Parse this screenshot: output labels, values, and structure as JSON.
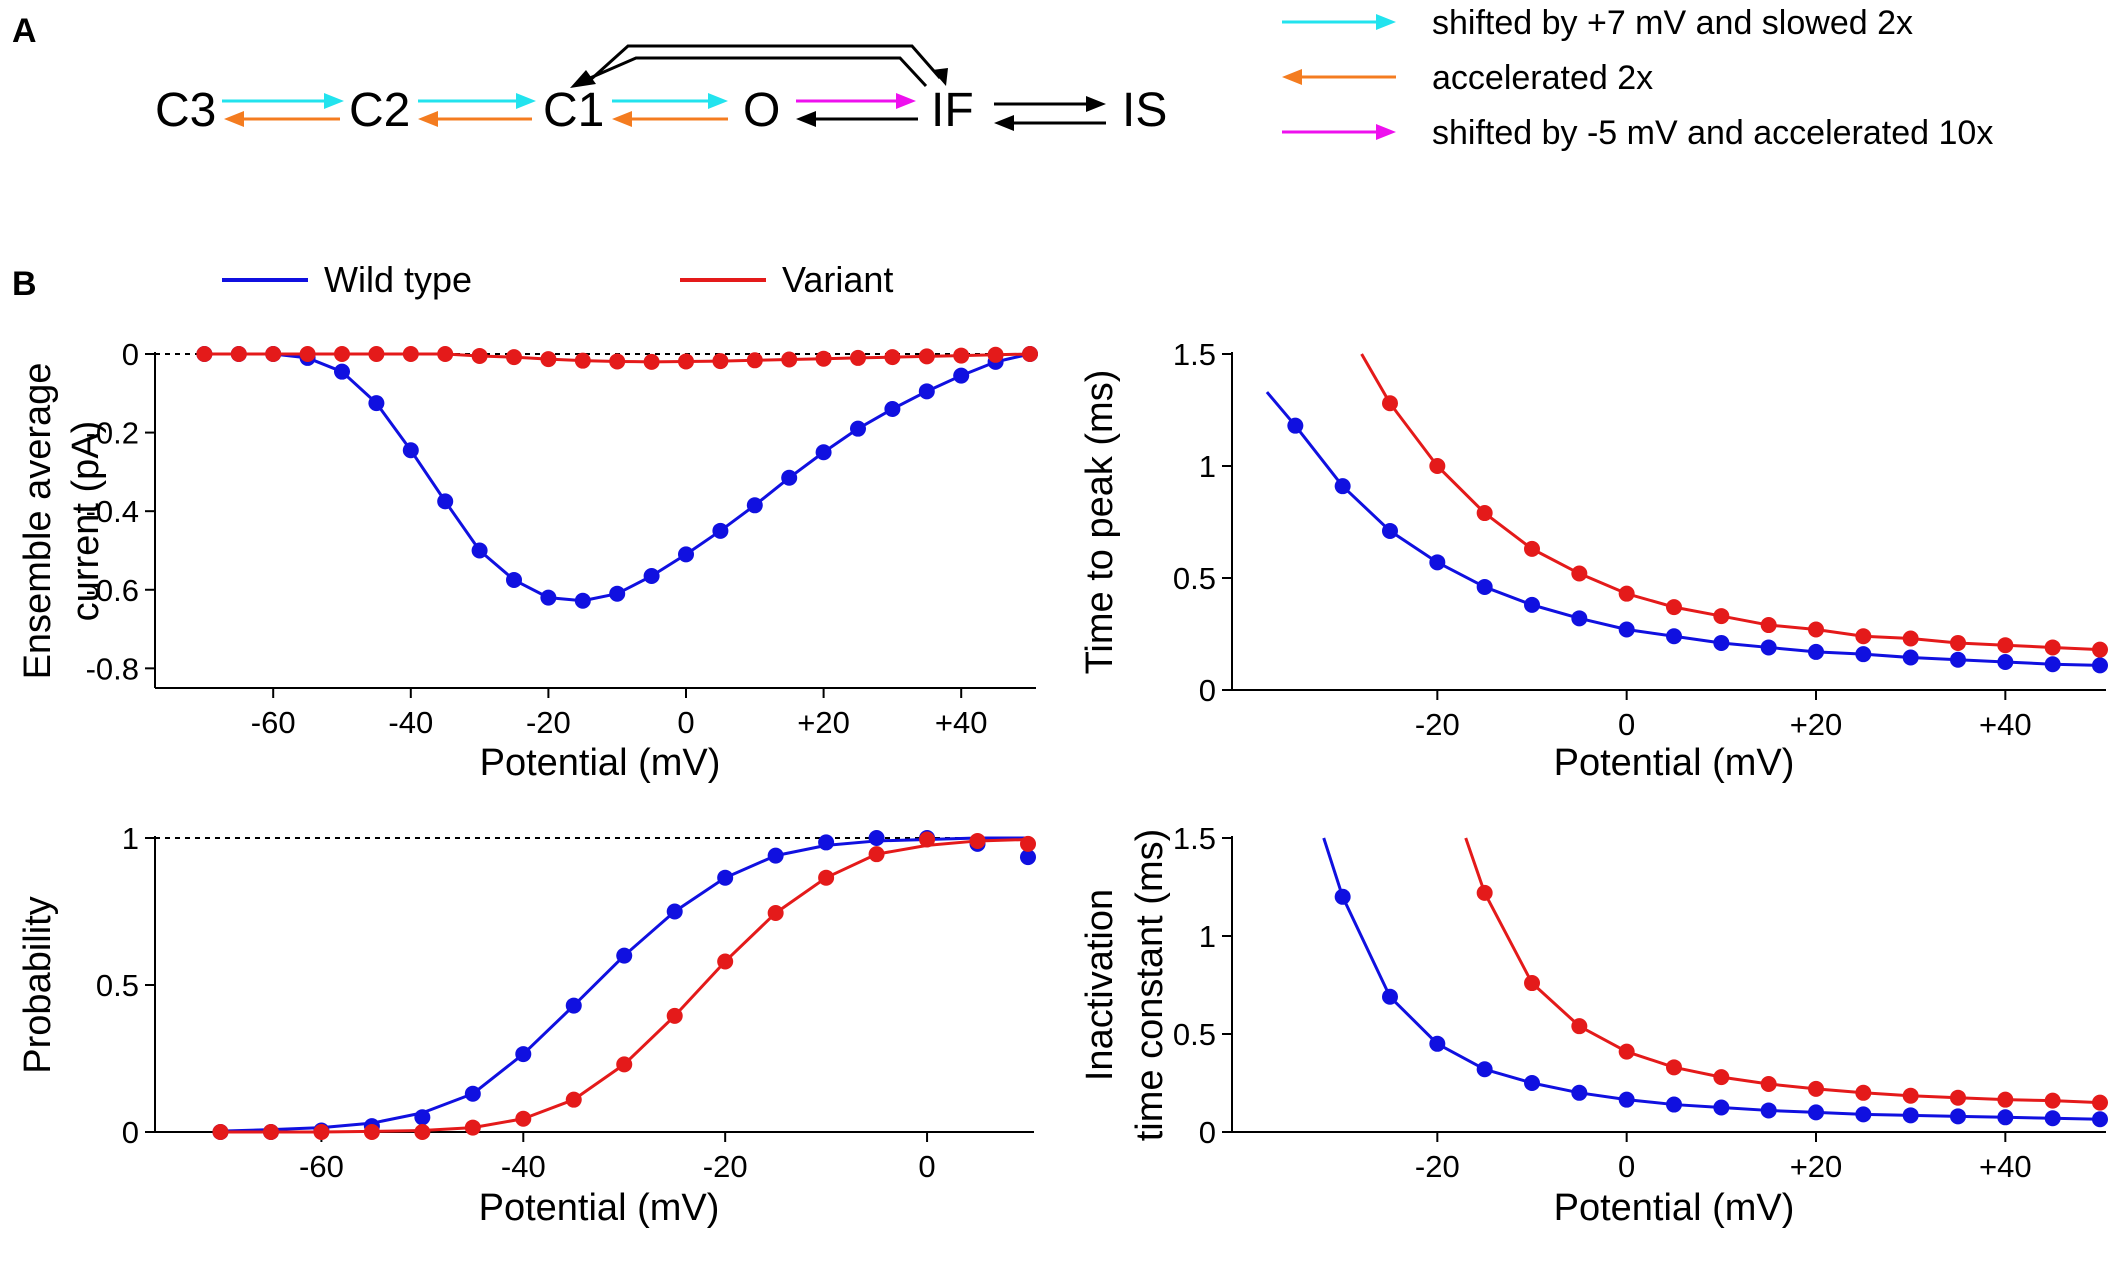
{
  "panel_labels": {
    "a": "A",
    "b": "B"
  },
  "scheme": {
    "states": [
      "C3",
      "C2",
      "C1",
      "O",
      "IF",
      "IS"
    ],
    "legend": [
      {
        "color": "#22e3ee",
        "label": "shifted by +7 mV and slowed 2x"
      },
      {
        "color": "#f47c20",
        "label": "accelerated 2x"
      },
      {
        "color": "#ee10ee",
        "label": "shifted by -5 mV and accelerated 10x"
      }
    ]
  },
  "series_legend": [
    {
      "name": "Wild type",
      "color": "#1010e0"
    },
    {
      "name": "Variant",
      "color": "#e41a1a"
    }
  ],
  "chart_data": [
    {
      "id": "current",
      "type": "line",
      "xlabel": "Potential (mV)",
      "ylabel": [
        "Ensemble average",
        "current (pA)"
      ],
      "xlim": [
        -75,
        50
      ],
      "ylim": [
        -0.85,
        0
      ],
      "xticks": [
        -60,
        -40,
        -20,
        0,
        20,
        40
      ],
      "xtick_labels": [
        "-60",
        "-40",
        "-20",
        "0",
        "+20",
        "+40"
      ],
      "yticks": [
        0,
        -0.2,
        -0.4,
        -0.6,
        -0.8
      ],
      "ytick_labels": [
        "0",
        "-0.2",
        "-0.4",
        "-0.6",
        "-0.8"
      ],
      "dashed_ref": 0,
      "series": [
        {
          "name": "Wild type",
          "x": [
            -70,
            -65,
            -60,
            -55,
            -50,
            -45,
            -40,
            -35,
            -30,
            -25,
            -20,
            -15,
            -10,
            -5,
            0,
            5,
            10,
            15,
            20,
            25,
            30,
            35,
            40,
            45,
            50
          ],
          "y": [
            0,
            0,
            0,
            -0.01,
            -0.045,
            -0.125,
            -0.245,
            -0.375,
            -0.5,
            -0.575,
            -0.62,
            -0.628,
            -0.61,
            -0.565,
            -0.51,
            -0.45,
            -0.385,
            -0.315,
            -0.25,
            -0.19,
            -0.14,
            -0.095,
            -0.055,
            -0.02,
            0
          ]
        },
        {
          "name": "Variant",
          "x": [
            -70,
            -65,
            -60,
            -55,
            -50,
            -45,
            -40,
            -35,
            -30,
            -25,
            -20,
            -15,
            -10,
            -5,
            0,
            5,
            10,
            15,
            20,
            25,
            30,
            35,
            40,
            45,
            50
          ],
          "y": [
            0,
            0,
            0,
            0,
            0,
            0,
            0,
            0,
            -0.005,
            -0.008,
            -0.013,
            -0.017,
            -0.019,
            -0.02,
            -0.019,
            -0.018,
            -0.016,
            -0.014,
            -0.012,
            -0.01,
            -0.008,
            -0.006,
            -0.004,
            -0.002,
            0
          ]
        }
      ]
    },
    {
      "id": "time_to_peak",
      "type": "line",
      "xlabel": "Potential (mV)",
      "ylabel": [
        "Time to peak (ms)"
      ],
      "xlim": [
        -40,
        50
      ],
      "ylim": [
        0,
        1.5
      ],
      "xticks": [
        -20,
        0,
        20,
        40
      ],
      "xtick_labels": [
        "-20",
        "0",
        "+20",
        "+40"
      ],
      "yticks": [
        0,
        0.5,
        1,
        1.5
      ],
      "ytick_labels": [
        "0",
        "0.5",
        "1",
        "1.5"
      ],
      "series": [
        {
          "name": "Wild type",
          "x": [
            -35,
            -30,
            -25,
            -20,
            -15,
            -10,
            -5,
            0,
            5,
            10,
            15,
            20,
            25,
            30,
            35,
            40,
            45,
            50
          ],
          "y": [
            1.18,
            0.91,
            0.71,
            0.57,
            0.46,
            0.38,
            0.32,
            0.27,
            0.24,
            0.21,
            0.19,
            0.17,
            0.16,
            0.145,
            0.135,
            0.125,
            0.115,
            0.11
          ],
          "curve_x": [
            -38,
            -35,
            -30,
            -25,
            -20,
            -15,
            -10,
            -5,
            0,
            5,
            10,
            15,
            20,
            25,
            30,
            35,
            40,
            45,
            50
          ],
          "curve_y": [
            1.33,
            1.18,
            0.91,
            0.71,
            0.57,
            0.46,
            0.38,
            0.32,
            0.27,
            0.24,
            0.21,
            0.19,
            0.17,
            0.16,
            0.145,
            0.135,
            0.125,
            0.115,
            0.11
          ]
        },
        {
          "name": "Variant",
          "x": [
            -25,
            -20,
            -15,
            -10,
            -5,
            0,
            5,
            10,
            15,
            20,
            25,
            30,
            35,
            40,
            45,
            50
          ],
          "y": [
            1.28,
            1.0,
            0.79,
            0.63,
            0.52,
            0.43,
            0.37,
            0.33,
            0.29,
            0.27,
            0.24,
            0.23,
            0.21,
            0.2,
            0.19,
            0.18
          ],
          "curve_x": [
            -28,
            -25,
            -20,
            -15,
            -10,
            -5,
            0,
            5,
            10,
            15,
            20,
            25,
            30,
            35,
            40,
            45,
            50
          ],
          "curve_y": [
            1.5,
            1.28,
            1.0,
            0.79,
            0.63,
            0.52,
            0.43,
            0.37,
            0.33,
            0.29,
            0.27,
            0.24,
            0.23,
            0.21,
            0.2,
            0.19,
            0.18
          ]
        }
      ]
    },
    {
      "id": "probability",
      "type": "line",
      "xlabel": "Potential (mV)",
      "ylabel": [
        "Probability"
      ],
      "xlim": [
        -75,
        10
      ],
      "ylim": [
        0,
        1
      ],
      "xticks": [
        -60,
        -40,
        -20,
        0
      ],
      "xtick_labels": [
        "-60",
        "-40",
        "-20",
        "0"
      ],
      "yticks": [
        0,
        0.5,
        1
      ],
      "ytick_labels": [
        "0",
        "0.5",
        "1"
      ],
      "dashed_ref": 1,
      "series": [
        {
          "name": "Wild type",
          "x": [
            -70,
            -65,
            -60,
            -55,
            -50,
            -45,
            -40,
            -35,
            -30,
            -25,
            -20,
            -15,
            -10,
            -5,
            0,
            5,
            10
          ],
          "y": [
            0,
            0,
            0.005,
            0.02,
            0.05,
            0.13,
            0.265,
            0.43,
            0.6,
            0.75,
            0.865,
            0.94,
            0.985,
            1.0,
            1.0,
            0.98,
            0.935
          ],
          "curve_x": [
            -70,
            -65,
            -60,
            -55,
            -50,
            -45,
            -40,
            -35,
            -30,
            -25,
            -20,
            -15,
            -10,
            -5,
            0,
            5,
            10
          ],
          "curve_y": [
            0.003,
            0.008,
            0.015,
            0.03,
            0.065,
            0.13,
            0.265,
            0.43,
            0.6,
            0.75,
            0.865,
            0.94,
            0.975,
            0.99,
            0.995,
            1.0,
            1.0
          ]
        },
        {
          "name": "Variant",
          "x": [
            -70,
            -65,
            -60,
            -55,
            -50,
            -45,
            -40,
            -35,
            -30,
            -25,
            -20,
            -15,
            -10,
            -5,
            0,
            5,
            10
          ],
          "y": [
            0,
            0,
            0,
            0,
            0,
            0.015,
            0.045,
            0.11,
            0.23,
            0.395,
            0.58,
            0.745,
            0.865,
            0.945,
            0.995,
            0.99,
            0.98
          ],
          "curve_x": [
            -70,
            -65,
            -60,
            -55,
            -50,
            -45,
            -40,
            -35,
            -30,
            -25,
            -20,
            -15,
            -10,
            -5,
            0,
            5,
            10
          ],
          "curve_y": [
            0,
            0,
            0,
            0.002,
            0.005,
            0.015,
            0.045,
            0.11,
            0.23,
            0.395,
            0.58,
            0.745,
            0.865,
            0.945,
            0.975,
            0.99,
            0.995
          ]
        }
      ]
    },
    {
      "id": "inactivation",
      "type": "line",
      "xlabel": "Potential (mV)",
      "ylabel": [
        "Inactivation",
        "time constant (ms)"
      ],
      "xlim": [
        -40,
        50
      ],
      "ylim": [
        0,
        1.5
      ],
      "xticks": [
        -20,
        0,
        20,
        40
      ],
      "xtick_labels": [
        "-20",
        "0",
        "+20",
        "+40"
      ],
      "yticks": [
        0,
        0.5,
        1,
        1.5
      ],
      "ytick_labels": [
        "0",
        "0.5",
        "1",
        "1.5"
      ],
      "series": [
        {
          "name": "Wild type",
          "x": [
            -30,
            -25,
            -20,
            -15,
            -10,
            -5,
            0,
            5,
            10,
            15,
            20,
            25,
            30,
            35,
            40,
            45,
            50
          ],
          "y": [
            1.2,
            0.69,
            0.45,
            0.32,
            0.25,
            0.2,
            0.165,
            0.14,
            0.125,
            0.11,
            0.1,
            0.09,
            0.085,
            0.08,
            0.075,
            0.07,
            0.065
          ],
          "curve_x": [
            -32,
            -30,
            -25,
            -20,
            -15,
            -10,
            -5,
            0,
            5,
            10,
            15,
            20,
            25,
            30,
            35,
            40,
            45,
            50
          ],
          "curve_y": [
            1.5,
            1.2,
            0.69,
            0.45,
            0.32,
            0.25,
            0.2,
            0.165,
            0.14,
            0.125,
            0.11,
            0.1,
            0.09,
            0.085,
            0.08,
            0.075,
            0.07,
            0.065
          ]
        },
        {
          "name": "Variant",
          "x": [
            -15,
            -10,
            -5,
            0,
            5,
            10,
            15,
            20,
            25,
            30,
            35,
            40,
            45,
            50
          ],
          "y": [
            1.22,
            0.76,
            0.54,
            0.41,
            0.33,
            0.28,
            0.245,
            0.22,
            0.2,
            0.185,
            0.175,
            0.165,
            0.16,
            0.15
          ],
          "curve_x": [
            -17,
            -15,
            -10,
            -5,
            0,
            5,
            10,
            15,
            20,
            25,
            30,
            35,
            40,
            45,
            50
          ],
          "curve_y": [
            1.5,
            1.22,
            0.76,
            0.54,
            0.41,
            0.33,
            0.28,
            0.245,
            0.22,
            0.2,
            0.185,
            0.175,
            0.165,
            0.16,
            0.15
          ]
        }
      ]
    }
  ]
}
